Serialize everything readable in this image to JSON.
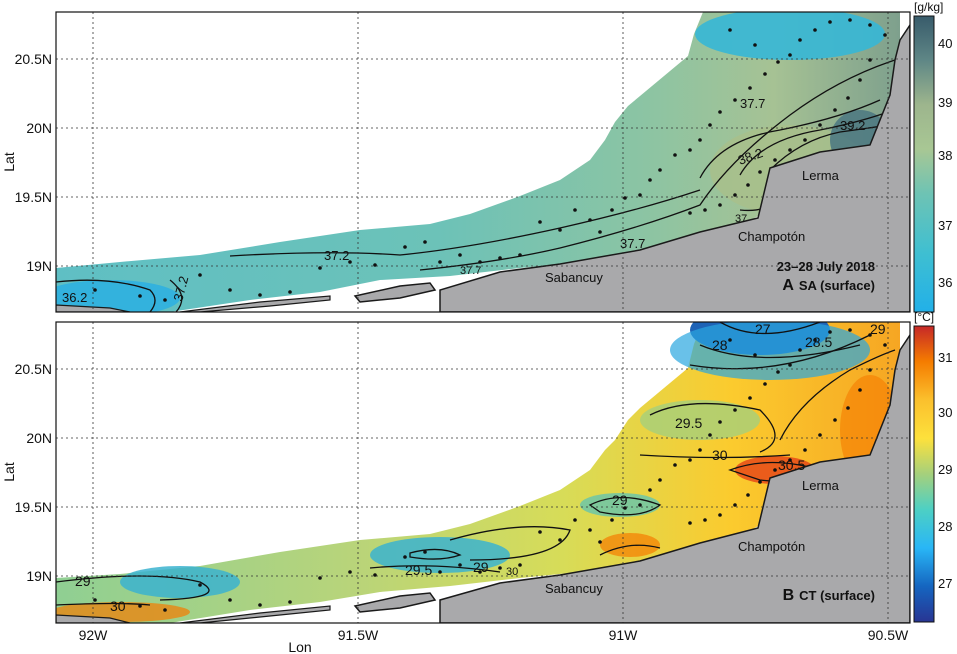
{
  "figure": {
    "y_axis_label": "Lat",
    "x_axis_label": "Lon",
    "x_ticks": [
      "92W",
      "91.5W",
      "91W",
      "90.5W"
    ],
    "y_ticks": [
      "19N",
      "19.5N",
      "20N",
      "20.5N"
    ]
  },
  "place_names": [
    "Lerma",
    "Champotón",
    "Sabancuy"
  ],
  "panels": [
    {
      "id": "A",
      "letter": "A",
      "label": "SA (surface)",
      "date": "23–28 July 2018",
      "colorbar": {
        "unit": "[g/kg]",
        "ticks": [
          "36",
          "37",
          "38",
          "39",
          "40"
        ],
        "colors": [
          "#2ab3e3",
          "#3fbfd1",
          "#59c2bf",
          "#7ec2ae",
          "#9bc79a",
          "#b2c98f",
          "#a9bd8e",
          "#8aa88d",
          "#6a8f8a",
          "#4d7580",
          "#3a5f6e"
        ]
      },
      "contour_labels": [
        "36.2",
        "37.2",
        "37.2",
        "37.7",
        "37.7",
        "37.7",
        "38.2",
        "39.2",
        "37"
      ]
    },
    {
      "id": "B",
      "letter": "B",
      "label": "CT (surface)",
      "date": "",
      "colorbar": {
        "unit": "[°C]",
        "ticks": [
          "27",
          "28",
          "29",
          "30",
          "31"
        ],
        "colors": [
          "#283593",
          "#1565c0",
          "#1e88e5",
          "#29b6f6",
          "#4dd0c4",
          "#7ccaa0",
          "#a5d07c",
          "#d4dc5a",
          "#fde13c",
          "#fbc02d",
          "#f9a825",
          "#f57c00",
          "#e64a19",
          "#c62828"
        ]
      },
      "contour_labels": [
        "27",
        "28",
        "28.5",
        "29",
        "29.5",
        "30",
        "30.5",
        "29",
        "29.5",
        "29",
        "30",
        "29",
        "30"
      ]
    }
  ]
}
